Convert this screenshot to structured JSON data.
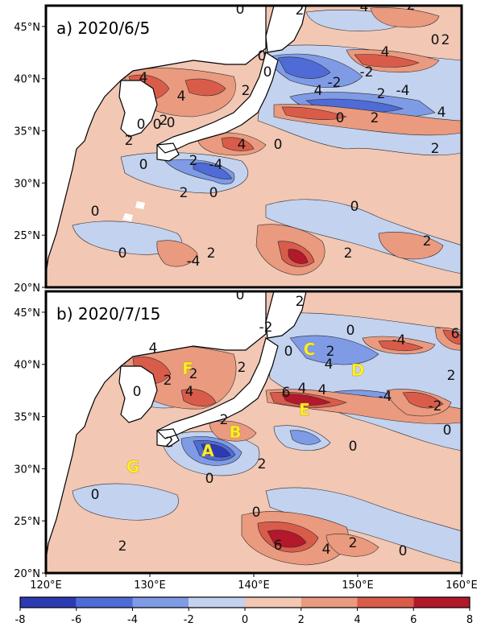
{
  "colors": {
    "neg8": "#2c3bb4",
    "neg6": "#4f6bd6",
    "neg4": "#7f9be6",
    "neg2": "#c3d2ef",
    "pos0": "#f2c7b3",
    "pos2": "#ea9a7f",
    "pos4": "#d95c4a",
    "pos6": "#b3182b",
    "land": "#ffffff",
    "coast": "#000000"
  },
  "panels": [
    {
      "label": "a) 2020/6/5",
      "contour_labels": [
        "0",
        "2",
        "4",
        "2",
        "0",
        "2",
        "4",
        "-2",
        "-4",
        "2",
        "4",
        "0",
        "0",
        "-2",
        "2",
        "4",
        "0",
        "2",
        "0",
        "4",
        "-4",
        "2",
        "0",
        "2",
        "0",
        "2",
        "0",
        "4",
        "4",
        "2",
        "0",
        "0",
        "0",
        "-4",
        "2",
        "0",
        "2",
        "0",
        "2",
        "2"
      ]
    },
    {
      "label": "b) 2020/7/15",
      "contour_labels": [
        "0",
        "2",
        "4",
        "2",
        "4",
        "2",
        "0",
        "-2",
        "2",
        "0",
        "2",
        "0",
        "-4",
        "4",
        "4",
        "6",
        "2",
        "0",
        "2",
        "0",
        "6",
        "4",
        "2",
        "0",
        "-4",
        "-2",
        "0",
        "2",
        "0",
        "4",
        "0",
        "2",
        "2",
        "6"
      ],
      "regions": [
        {
          "id": "A",
          "text": "A"
        },
        {
          "id": "B",
          "text": "B"
        },
        {
          "id": "C",
          "text": "C"
        },
        {
          "id": "D",
          "text": "D"
        },
        {
          "id": "E",
          "text": "E"
        },
        {
          "id": "F",
          "text": "F"
        },
        {
          "id": "G",
          "text": "G"
        }
      ]
    }
  ],
  "axes": {
    "lat_ticks": [
      "45°N",
      "40°N",
      "35°N",
      "30°N",
      "25°N",
      "20°N"
    ],
    "lon_ticks": [
      "120°E",
      "130°E",
      "140°E",
      "150°E",
      "160°E"
    ]
  },
  "colorbar": {
    "ticks": [
      "-8",
      "-6",
      "-4",
      "-2",
      "0",
      "2",
      "4",
      "6",
      "8"
    ]
  }
}
